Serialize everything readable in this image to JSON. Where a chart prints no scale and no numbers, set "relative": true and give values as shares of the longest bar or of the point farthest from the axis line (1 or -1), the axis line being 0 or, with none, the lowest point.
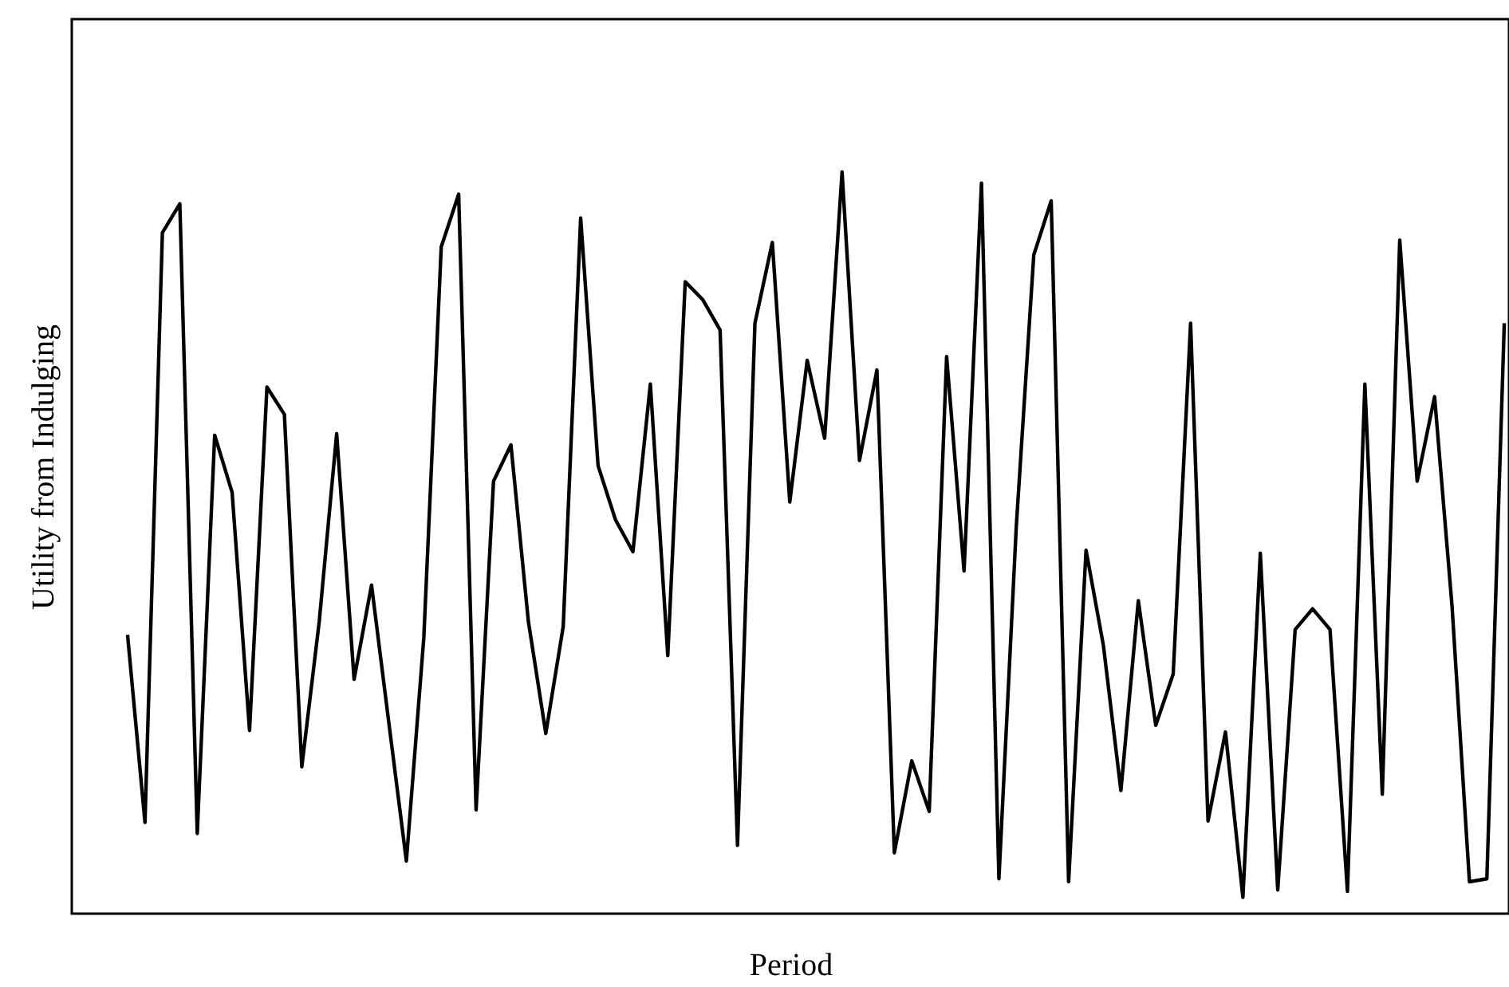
{
  "chart_data": {
    "type": "line",
    "relative": true,
    "xlabel": "Period",
    "ylabel": "Utility  from Indulging",
    "grid": false,
    "marker": "none",
    "line_style": "solid",
    "categories": [
      null,
      null,
      null,
      null,
      null,
      null,
      null,
      null,
      null,
      null,
      null,
      null,
      null,
      null,
      null,
      null,
      null,
      null,
      null,
      null,
      null,
      null,
      null,
      null,
      null,
      null,
      null,
      null,
      null,
      null,
      null,
      null,
      null,
      null,
      null,
      null,
      null,
      null,
      null,
      null,
      null,
      null,
      null,
      null,
      null,
      null,
      null,
      null,
      null,
      null,
      null,
      null,
      null,
      null,
      null,
      null,
      null,
      null,
      null,
      null,
      null,
      null,
      null,
      null,
      null,
      null,
      null,
      null,
      null,
      null,
      null,
      null,
      null,
      null,
      null,
      null,
      null,
      null,
      null,
      null
    ],
    "series": [
      {
        "color": "#000000",
        "values": [
          0.376,
          0.123,
          0.918,
          0.957,
          0.108,
          0.645,
          0.568,
          0.247,
          0.71,
          0.673,
          0.198,
          0.394,
          0.647,
          0.316,
          0.443,
          0.256,
          0.071,
          0.372,
          0.899,
          0.97,
          0.14,
          0.583,
          0.632,
          0.394,
          0.243,
          0.387,
          0.938,
          0.604,
          0.531,
          0.488,
          0.714,
          0.348,
          0.852,
          0.828,
          0.787,
          0.092,
          0.796,
          0.905,
          0.555,
          0.746,
          0.641,
          1,
          0.611,
          0.733,
          0.082,
          0.206,
          0.138,
          0.751,
          0.462,
          0.985,
          0.047,
          0.523,
          0.888,
          0.961,
          0.043,
          0.49,
          0.361,
          0.166,
          0.422,
          0.254,
          0.323,
          0.796,
          0.125,
          0.245,
          0.022,
          0.486,
          0.032,
          0.383,
          0.411,
          0.383,
          0.03,
          0.714,
          0.161,
          0.908,
          0.583,
          0.697,
          0.415,
          0.043,
          0.047,
          0.796
        ]
      }
    ]
  }
}
